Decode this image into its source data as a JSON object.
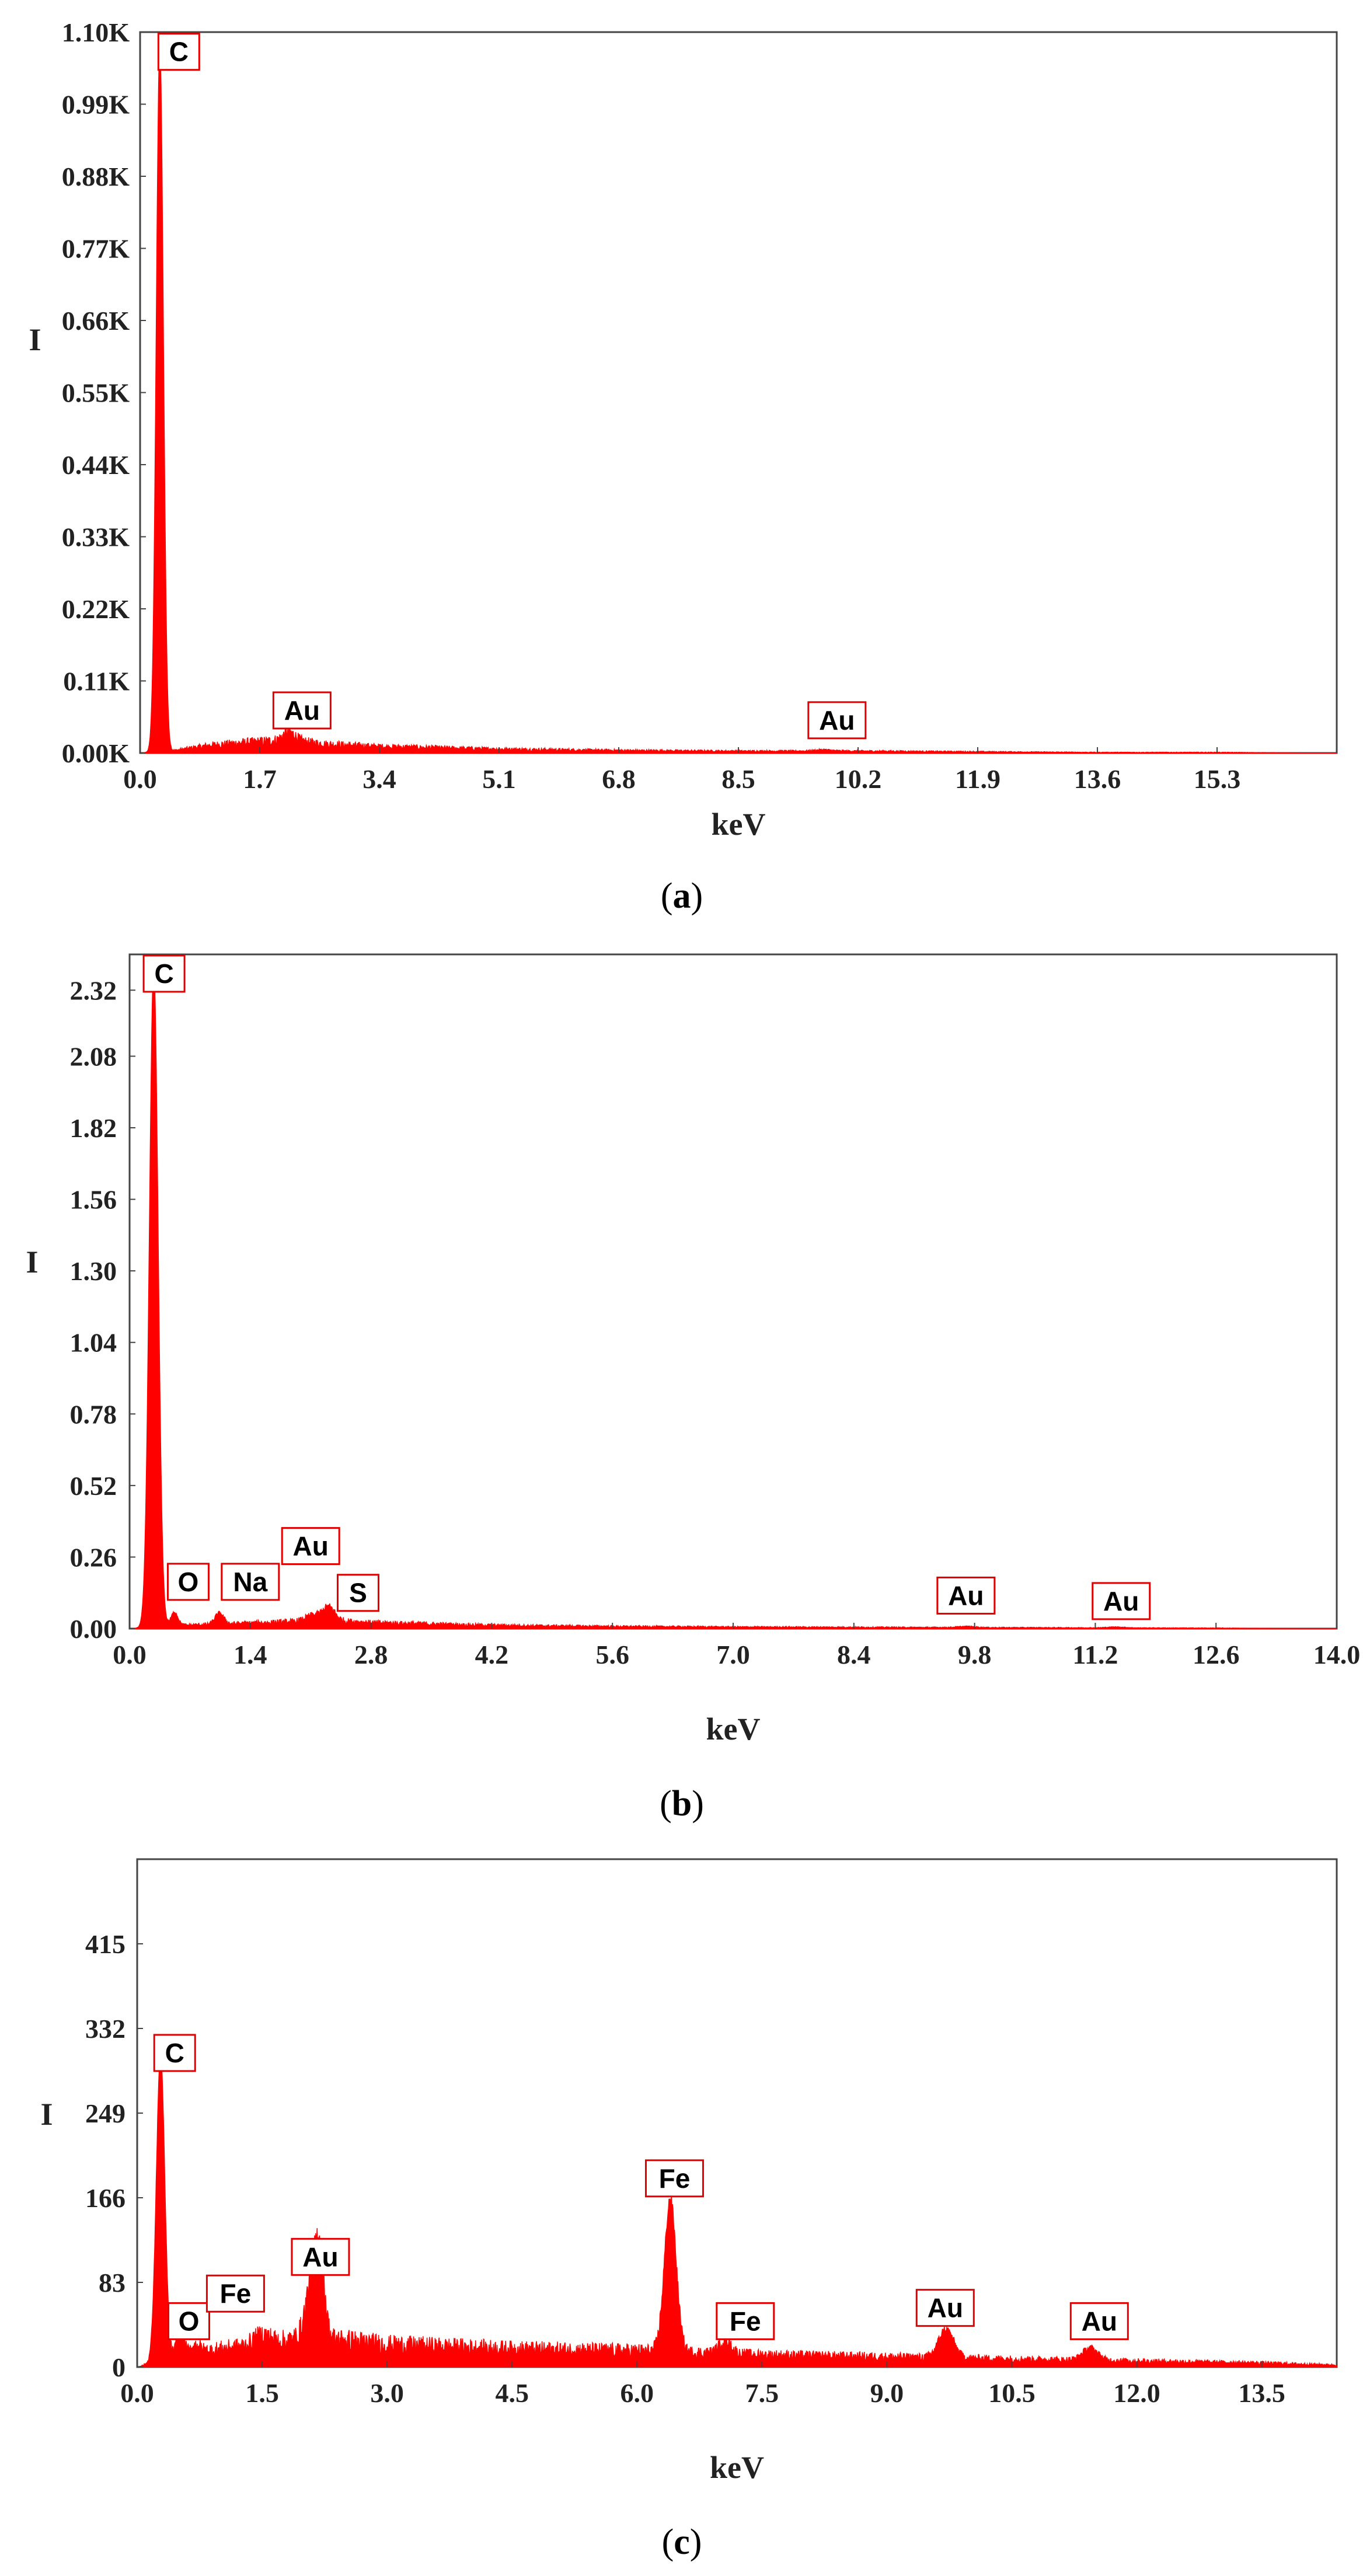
{
  "colors": {
    "spectrum": "#ff0000",
    "label_box": "#e00000",
    "axes": "#444444",
    "text": "#222222"
  },
  "chart_data": [
    {
      "type": "area",
      "panel": "a",
      "xlabel": "keV",
      "ylabel": "I",
      "xlim": [
        0.0,
        17.0
      ],
      "ylim": [
        0.0,
        1.1
      ],
      "x_ticks": [
        "0.0",
        "1.7",
        "3.4",
        "5.1",
        "6.8",
        "8.5",
        "10.2",
        "11.9",
        "13.6",
        "15.3"
      ],
      "x_tick_values": [
        0.0,
        1.7,
        3.4,
        5.1,
        6.8,
        8.5,
        10.2,
        11.9,
        13.6,
        15.3
      ],
      "y_ticks": [
        "0.00K",
        "0.11K",
        "0.22K",
        "0.33K",
        "0.44K",
        "0.55K",
        "0.66K",
        "0.77K",
        "0.88K",
        "0.99K",
        "1.10K"
      ],
      "y_tick_values": [
        0.0,
        0.11,
        0.22,
        0.33,
        0.44,
        0.55,
        0.66,
        0.77,
        0.88,
        0.99,
        1.1
      ],
      "background": [
        [
          0.0,
          0.0
        ],
        [
          0.5,
          0.004
        ],
        [
          1.0,
          0.012
        ],
        [
          1.5,
          0.016
        ],
        [
          2.1,
          0.02
        ],
        [
          2.6,
          0.014
        ],
        [
          3.4,
          0.01
        ],
        [
          5.1,
          0.006
        ],
        [
          6.8,
          0.004
        ],
        [
          8.5,
          0.003
        ],
        [
          10.2,
          0.003
        ],
        [
          11.9,
          0.002
        ],
        [
          13.6,
          0.001
        ],
        [
          15.3,
          0.001
        ],
        [
          17.0,
          0.0
        ]
      ],
      "peaks": [
        {
          "element": "C",
          "energy": 0.28,
          "intensity": 1.08,
          "width": 0.05
        },
        {
          "element": "Au",
          "energy": 2.12,
          "intensity": 0.012,
          "width": 0.09
        },
        {
          "element": "Au",
          "energy": 9.71,
          "intensity": 0.002,
          "width": 0.12
        }
      ],
      "annotations": [
        {
          "text": "C",
          "x": 0.55,
          "y": 1.07
        },
        {
          "text": "Au",
          "x": 2.3,
          "y": 0.065
        },
        {
          "text": "Au",
          "x": 9.9,
          "y": 0.05
        }
      ]
    },
    {
      "type": "area",
      "panel": "b",
      "xlabel": "keV",
      "ylabel": "I",
      "xlim": [
        0.0,
        14.0
      ],
      "ylim": [
        0.0,
        2.45
      ],
      "x_ticks": [
        "0.0",
        "1.4",
        "2.8",
        "4.2",
        "5.6",
        "7.0",
        "8.4",
        "9.8",
        "11.2",
        "12.6",
        "14.0"
      ],
      "x_tick_values": [
        0.0,
        1.4,
        2.8,
        4.2,
        5.6,
        7.0,
        8.4,
        9.8,
        11.2,
        12.6,
        14.0
      ],
      "y_ticks": [
        "0.00",
        "0.26",
        "0.52",
        "0.78",
        "1.04",
        "1.30",
        "1.56",
        "1.82",
        "2.08",
        "2.32"
      ],
      "y_tick_values": [
        0.0,
        0.26,
        0.52,
        0.78,
        1.04,
        1.3,
        1.56,
        1.82,
        2.08,
        2.32
      ],
      "background": [
        [
          0.0,
          0.0
        ],
        [
          0.6,
          0.012
        ],
        [
          1.2,
          0.018
        ],
        [
          1.8,
          0.024
        ],
        [
          2.3,
          0.03
        ],
        [
          2.8,
          0.022
        ],
        [
          4.2,
          0.012
        ],
        [
          5.6,
          0.008
        ],
        [
          7.0,
          0.006
        ],
        [
          8.4,
          0.005
        ],
        [
          9.8,
          0.004
        ],
        [
          11.2,
          0.003
        ],
        [
          12.6,
          0.002
        ],
        [
          14.0,
          0.0
        ]
      ],
      "peaks": [
        {
          "element": "C",
          "energy": 0.28,
          "intensity": 2.4,
          "width": 0.05
        },
        {
          "element": "O",
          "energy": 0.52,
          "intensity": 0.05,
          "width": 0.04
        },
        {
          "element": "Na",
          "energy": 1.04,
          "intensity": 0.04,
          "width": 0.05
        },
        {
          "element": "Au",
          "energy": 2.12,
          "intensity": 0.02,
          "width": 0.08
        },
        {
          "element": "S",
          "energy": 2.31,
          "intensity": 0.05,
          "width": 0.07
        },
        {
          "element": "Au",
          "energy": 9.71,
          "intensity": 0.004,
          "width": 0.1
        },
        {
          "element": "Au",
          "energy": 11.44,
          "intensity": 0.003,
          "width": 0.1
        }
      ],
      "annotations": [
        {
          "text": "C",
          "x": 0.4,
          "y": 2.38
        },
        {
          "text": "O",
          "x": 0.68,
          "y": 0.17
        },
        {
          "text": "Na",
          "x": 1.4,
          "y": 0.17
        },
        {
          "text": "Au",
          "x": 2.1,
          "y": 0.3
        },
        {
          "text": "S",
          "x": 2.65,
          "y": 0.13
        },
        {
          "text": "Au",
          "x": 9.7,
          "y": 0.12
        },
        {
          "text": "Au",
          "x": 11.5,
          "y": 0.1
        }
      ]
    },
    {
      "type": "area",
      "panel": "c",
      "xlabel": "keV",
      "ylabel": "I",
      "xlim": [
        0.0,
        14.4
      ],
      "ylim": [
        0.0,
        498.0
      ],
      "x_ticks": [
        "0.0",
        "1.5",
        "3.0",
        "4.5",
        "6.0",
        "7.5",
        "9.0",
        "10.5",
        "12.0",
        "13.5"
      ],
      "x_tick_values": [
        0.0,
        1.5,
        3.0,
        4.5,
        6.0,
        7.5,
        9.0,
        10.5,
        12.0,
        13.5
      ],
      "y_ticks": [
        "0",
        "83",
        "166",
        "249",
        "332",
        "415"
      ],
      "y_tick_values": [
        0,
        83,
        166,
        249,
        332,
        415
      ],
      "background": [
        [
          0.0,
          0.0
        ],
        [
          0.5,
          12.0
        ],
        [
          1.0,
          18.0
        ],
        [
          1.5,
          22.0
        ],
        [
          2.0,
          28.0
        ],
        [
          2.5,
          26.0
        ],
        [
          3.0,
          22.0
        ],
        [
          4.5,
          18.0
        ],
        [
          6.0,
          16.0
        ],
        [
          7.5,
          12.0
        ],
        [
          9.0,
          10.0
        ],
        [
          10.5,
          8.0
        ],
        [
          12.0,
          6.0
        ],
        [
          13.5,
          4.0
        ],
        [
          14.4,
          2.0
        ]
      ],
      "peaks": [
        {
          "element": "C",
          "energy": 0.28,
          "intensity": 300.0,
          "width": 0.05
        },
        {
          "element": "O",
          "energy": 0.52,
          "intensity": 30.0,
          "width": 0.04
        },
        {
          "element": "Fe",
          "energy": 0.71,
          "intensity": 8.0,
          "width": 0.05
        },
        {
          "element": "",
          "energy": 1.5,
          "intensity": 10.0,
          "width": 0.1
        },
        {
          "element": "Au",
          "energy": 2.12,
          "intensity": 70.0,
          "width": 0.08
        },
        {
          "element": "",
          "energy": 2.2,
          "intensity": 55.0,
          "width": 0.05
        },
        {
          "element": "Fe",
          "energy": 6.4,
          "intensity": 150.0,
          "width": 0.07
        },
        {
          "element": "Fe",
          "energy": 7.06,
          "intensity": 14.0,
          "width": 0.07
        },
        {
          "element": "Au",
          "energy": 9.71,
          "intensity": 28.0,
          "width": 0.09
        },
        {
          "element": "Au",
          "energy": 11.44,
          "intensity": 12.0,
          "width": 0.09
        }
      ],
      "annotations": [
        {
          "text": "C",
          "x": 0.45,
          "y": 308.0
        },
        {
          "text": "O",
          "x": 0.62,
          "y": 45.0
        },
        {
          "text": "Fe",
          "x": 1.18,
          "y": 72.0
        },
        {
          "text": "Au",
          "x": 2.2,
          "y": 108.0
        },
        {
          "text": "Fe",
          "x": 6.45,
          "y": 185.0
        },
        {
          "text": "Fe",
          "x": 7.3,
          "y": 45.0
        },
        {
          "text": "Au",
          "x": 9.7,
          "y": 58.0
        },
        {
          "text": "Au",
          "x": 11.55,
          "y": 45.0
        }
      ]
    }
  ]
}
